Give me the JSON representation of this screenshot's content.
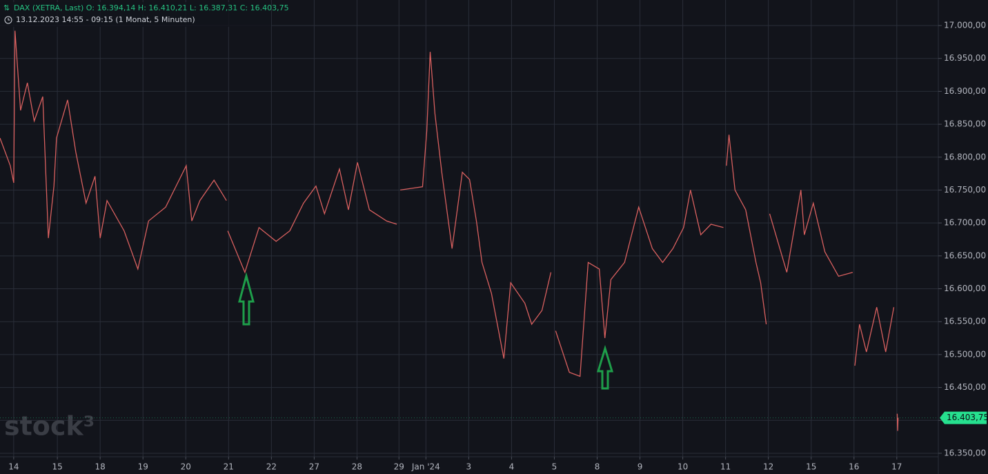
{
  "chart_data": {
    "type": "line",
    "title": "DAX (XETRA, Last)",
    "ohlc": [
      {
        "label": "O:",
        "value": "16.394,14"
      },
      {
        "label": "H:",
        "value": "16.410,21"
      },
      {
        "label": "L:",
        "value": "16.387,31"
      },
      {
        "label": "C:",
        "value": "16.403,75"
      }
    ],
    "subtitle": "13.12.2023 14:55 - 09:15  (1 Monat, 5 Minuten)",
    "watermark": "stock³",
    "last_price": {
      "value": 16403.75,
      "label": "16.403,75"
    },
    "grid": true,
    "x": [
      -0.32,
      -0.08,
      0,
      0.03,
      0.16,
      0.32,
      0.48,
      0.68,
      0.81,
      0.94,
      1.0,
      1.26,
      1.45,
      1.69,
      1.9,
      2.02,
      2.18,
      2.58,
      2.9,
      3.15,
      3.55,
      4.03,
      4.16,
      4.35,
      4.68,
      4.97,
      4.985,
      5.0,
      5.4,
      5.73,
      6.13,
      6.45,
      6.77,
      7.06,
      7.26,
      7.61,
      7.82,
      8.03,
      8.31,
      8.71,
      8.95,
      8.99,
      9.03,
      9.55,
      9.65,
      9.73,
      9.84,
      10.0,
      10.24,
      10.48,
      10.65,
      10.81,
      10.94,
      11.16,
      11.45,
      11.61,
      11.94,
      12.1,
      12.34,
      12.55,
      12.6,
      12.66,
      12.98,
      13.23,
      13.42,
      13.68,
      13.81,
      13.95,
      14.27,
      14.6,
      14.92,
      15.16,
      15.4,
      15.65,
      15.81,
      16.05,
      16.29,
      16.58,
      16.61,
      16.65,
      16.71,
      16.85,
      17.1,
      17.34,
      17.45,
      17.58,
      17.62,
      17.66,
      18.06,
      18.39,
      18.47,
      18.68,
      18.95,
      19.27,
      19.6,
      19.62,
      19.65,
      19.76,
      19.92,
      20.16,
      20.37,
      20.56,
      20.6,
      20.64,
      20.65,
      20.66
    ],
    "series": [
      {
        "name": "DAX",
        "color": "#d9605f",
        "values": [
          16829,
          16787,
          16761,
          16992,
          16871,
          16913,
          16855,
          16892,
          16677,
          16756,
          16829,
          16887,
          16808,
          16730,
          16771,
          16677,
          16734,
          16688,
          16630,
          16703,
          16724,
          16787,
          16703,
          16734,
          16765,
          16734,
          null,
          16688,
          16625,
          16693,
          16672,
          16688,
          16730,
          16756,
          16714,
          16782,
          16720,
          16792,
          16720,
          16703,
          16698,
          null,
          16750,
          16755,
          16840,
          16960,
          16866,
          16777,
          16661,
          16777,
          16766,
          16703,
          16640,
          16593,
          16494,
          16609,
          16578,
          16546,
          16567,
          16625,
          null,
          16536,
          16473,
          16467,
          16640,
          16630,
          16525,
          16614,
          16640,
          16724,
          16661,
          16640,
          16661,
          16693,
          16750,
          16682,
          16698,
          16693,
          null,
          16787,
          16834,
          16750,
          16720,
          16640,
          16609,
          16546,
          null,
          16714,
          16625,
          16750,
          16682,
          16730,
          16656,
          16619,
          16625,
          null,
          16483,
          16546,
          16504,
          16572,
          16504,
          16572,
          null,
          16410,
          16384,
          16404
        ]
      }
    ],
    "xlim": [
      -0.32,
      21.6
    ],
    "xticks": [
      {
        "value": 0,
        "label": "14"
      },
      {
        "value": 1.02,
        "label": "15"
      },
      {
        "value": 2.02,
        "label": "18"
      },
      {
        "value": 3.02,
        "label": "19"
      },
      {
        "value": 4.02,
        "label": "20"
      },
      {
        "value": 5.02,
        "label": "21"
      },
      {
        "value": 6.02,
        "label": "22"
      },
      {
        "value": 7.02,
        "label": "27"
      },
      {
        "value": 8.02,
        "label": "28"
      },
      {
        "value": 9.0,
        "label": "29"
      },
      {
        "value": 9.63,
        "label": "Jan '24"
      },
      {
        "value": 10.63,
        "label": "3"
      },
      {
        "value": 11.63,
        "label": "4"
      },
      {
        "value": 12.63,
        "label": "5"
      },
      {
        "value": 13.63,
        "label": "8"
      },
      {
        "value": 14.63,
        "label": "9"
      },
      {
        "value": 15.63,
        "label": "10"
      },
      {
        "value": 16.63,
        "label": "11"
      },
      {
        "value": 17.63,
        "label": "12"
      },
      {
        "value": 18.63,
        "label": "15"
      },
      {
        "value": 19.63,
        "label": "16"
      },
      {
        "value": 20.63,
        "label": "17"
      }
    ],
    "ylim": [
      16344.7,
      17038.8
    ],
    "yticks": [
      {
        "value": 16350,
        "label": "16.350,00"
      },
      {
        "value": 16400,
        "label": "16.400,00"
      },
      {
        "value": 16450,
        "label": "16.450,00"
      },
      {
        "value": 16500,
        "label": "16.500,00"
      },
      {
        "value": 16550,
        "label": "16.550,00"
      },
      {
        "value": 16600,
        "label": "16.600,00"
      },
      {
        "value": 16650,
        "label": "16.650,00"
      },
      {
        "value": 16700,
        "label": "16.700,00"
      },
      {
        "value": 16750,
        "label": "16.750,00"
      },
      {
        "value": 16800,
        "label": "16.800,00"
      },
      {
        "value": 16850,
        "label": "16.850,00"
      },
      {
        "value": 16900,
        "label": "16.900,00"
      },
      {
        "value": 16950,
        "label": "16.950,00"
      },
      {
        "value": 17000,
        "label": "17.000,00"
      }
    ]
  }
}
